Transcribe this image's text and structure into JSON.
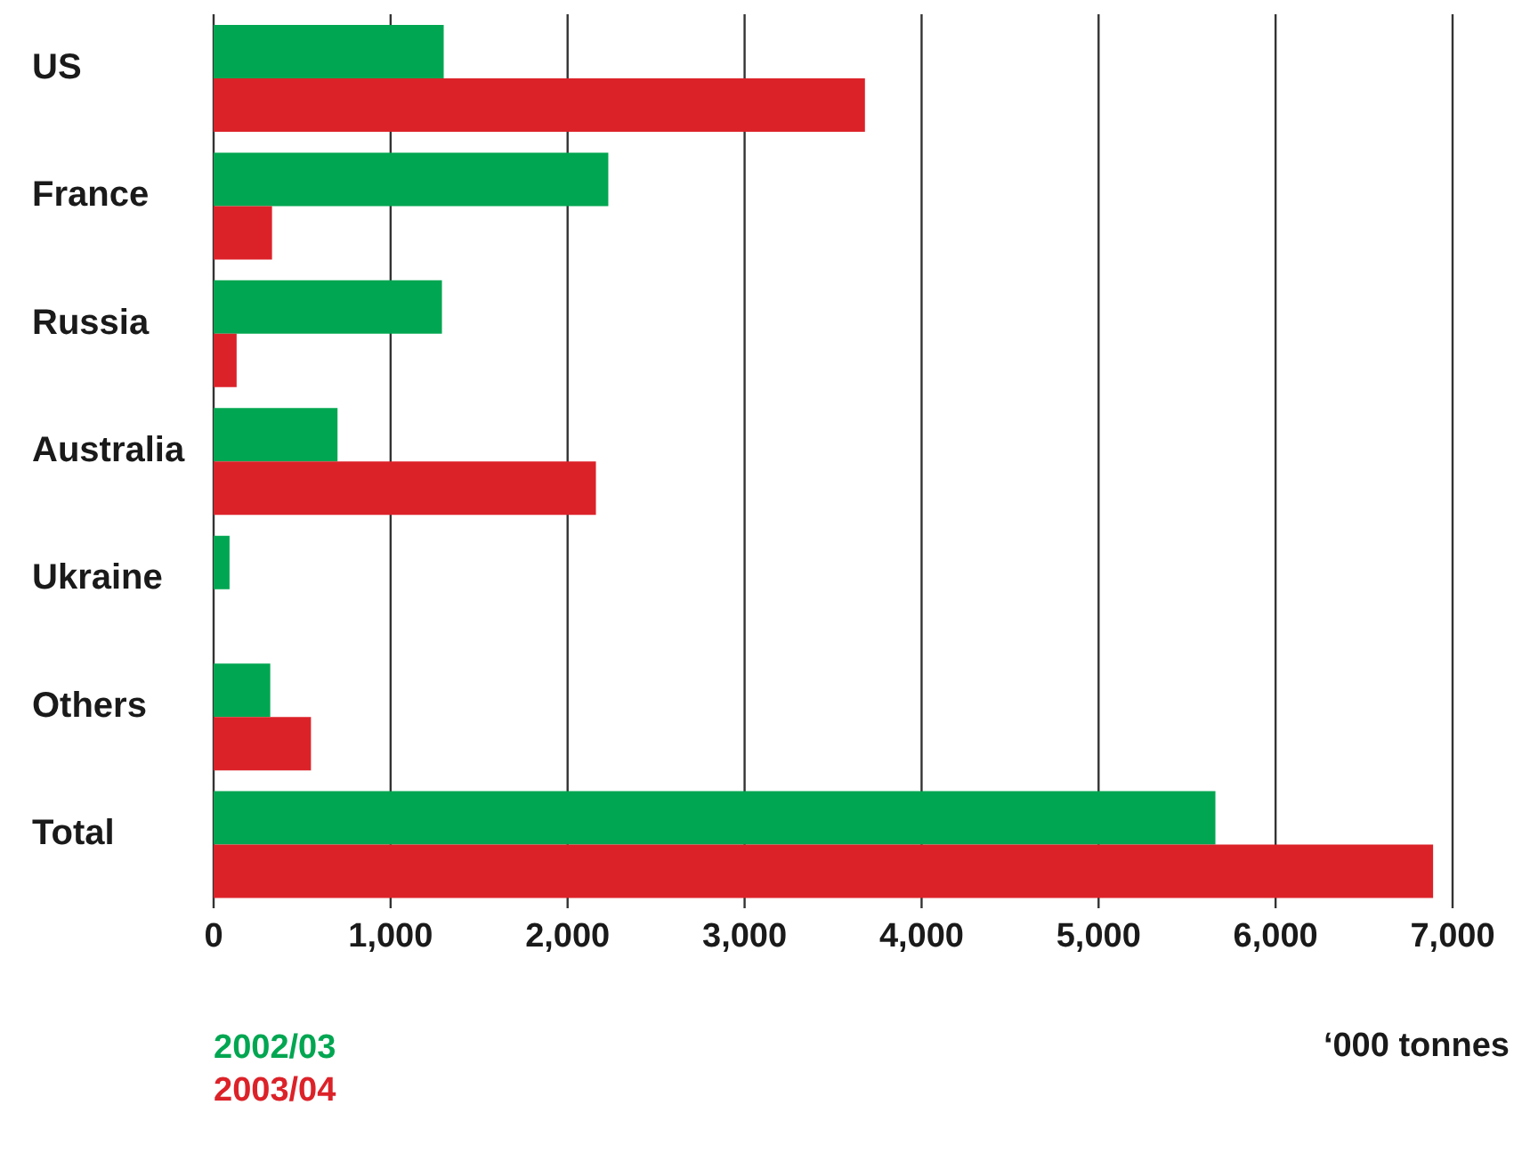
{
  "chart_data": {
    "type": "bar",
    "orientation": "horizontal",
    "xlabel": "‘000 tonnes",
    "categories": [
      "US",
      "France",
      "Russia",
      "Australia",
      "Ukraine",
      "Others",
      "Total"
    ],
    "series": [
      {
        "name": "2002/03",
        "color": "#00a651",
        "values": [
          1300,
          2230,
          1290,
          700,
          90,
          320,
          5660
        ]
      },
      {
        "name": "2003/04",
        "color": "#dc2229",
        "values": [
          3680,
          330,
          130,
          2160,
          null,
          550,
          6890
        ]
      }
    ],
    "xlim": [
      0,
      7000
    ],
    "xticks": [
      0,
      {
        "value": 1000,
        "label": "1,000"
      },
      {
        "value": 2000,
        "label": "2,000"
      },
      {
        "value": 3000,
        "label": "3,000"
      },
      {
        "value": 4000,
        "label": "4,000"
      },
      {
        "value": 5000,
        "label": "5,000"
      },
      {
        "value": 6000,
        "label": "6,000"
      },
      {
        "value": 7000,
        "label": "7,000"
      }
    ],
    "grid": "x",
    "legend": "bottom left"
  }
}
